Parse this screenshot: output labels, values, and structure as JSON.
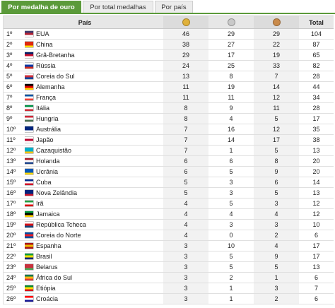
{
  "tabs": [
    {
      "label": "Por medalha de ouro",
      "active": true
    },
    {
      "label": "Por total medalhas",
      "active": false
    },
    {
      "label": "Por país",
      "active": false
    }
  ],
  "header": {
    "country": "País",
    "total": "Total",
    "gold_icon": "gold-medal-icon",
    "silver_icon": "silver-medal-icon",
    "bronze_icon": "bronze-medal-icon",
    "gold_color": "#e0b13a",
    "silver_color": "#c9c9c9",
    "bronze_color": "#c98a4a"
  },
  "rows": [
    {
      "rank": "1º",
      "name": "EUA",
      "flag": [
        "#3c3b6e",
        "#b22234",
        "#ffffff"
      ],
      "gold": "46",
      "silver": "29",
      "bronze": "29",
      "total": "104"
    },
    {
      "rank": "2º",
      "name": "China",
      "flag": [
        "#de2910",
        "#de2910",
        "#ffde00"
      ],
      "gold": "38",
      "silver": "27",
      "bronze": "22",
      "total": "87"
    },
    {
      "rank": "3º",
      "name": "Grã-Bretanha",
      "flag": [
        "#012169",
        "#c8102e",
        "#ffffff"
      ],
      "gold": "29",
      "silver": "17",
      "bronze": "19",
      "total": "65"
    },
    {
      "rank": "4º",
      "name": "Rússia",
      "flag": [
        "#ffffff",
        "#0039a6",
        "#d52b1e"
      ],
      "gold": "24",
      "silver": "25",
      "bronze": "33",
      "total": "82"
    },
    {
      "rank": "5º",
      "name": "Coreia do Sul",
      "flag": [
        "#ffffff",
        "#cd2e3a",
        "#0047a0"
      ],
      "gold": "13",
      "silver": "8",
      "bronze": "7",
      "total": "28"
    },
    {
      "rank": "6º",
      "name": "Alemanha",
      "flag": [
        "#000000",
        "#dd0000",
        "#ffce00"
      ],
      "gold": "11",
      "silver": "19",
      "bronze": "14",
      "total": "44"
    },
    {
      "rank": "7º",
      "name": "França",
      "flag": [
        "#0055a4",
        "#ffffff",
        "#ef4135"
      ],
      "gold": "11",
      "silver": "11",
      "bronze": "12",
      "total": "34"
    },
    {
      "rank": "8º",
      "name": "Itália",
      "flag": [
        "#009246",
        "#ffffff",
        "#ce2b37"
      ],
      "gold": "8",
      "silver": "9",
      "bronze": "11",
      "total": "28"
    },
    {
      "rank": "9º",
      "name": "Hungria",
      "flag": [
        "#ce2939",
        "#ffffff",
        "#477050"
      ],
      "gold": "8",
      "silver": "4",
      "bronze": "5",
      "total": "17"
    },
    {
      "rank": "10º",
      "name": "Austrália",
      "flag": [
        "#00247d",
        "#00247d",
        "#ffffff"
      ],
      "gold": "7",
      "silver": "16",
      "bronze": "12",
      "total": "35"
    },
    {
      "rank": "11º",
      "name": "Japão",
      "flag": [
        "#ffffff",
        "#bc002d",
        "#ffffff"
      ],
      "gold": "7",
      "silver": "14",
      "bronze": "17",
      "total": "38"
    },
    {
      "rank": "12º",
      "name": "Cazaquistão",
      "flag": [
        "#00afca",
        "#00afca",
        "#fec50c"
      ],
      "gold": "7",
      "silver": "1",
      "bronze": "5",
      "total": "13"
    },
    {
      "rank": "13º",
      "name": "Holanda",
      "flag": [
        "#ae1c28",
        "#ffffff",
        "#21468b"
      ],
      "gold": "6",
      "silver": "6",
      "bronze": "8",
      "total": "20"
    },
    {
      "rank": "14º",
      "name": "Ucrânia",
      "flag": [
        "#0057b7",
        "#0057b7",
        "#ffd700"
      ],
      "gold": "6",
      "silver": "5",
      "bronze": "9",
      "total": "20"
    },
    {
      "rank": "15º",
      "name": "Cuba",
      "flag": [
        "#002a8f",
        "#ffffff",
        "#cf142b"
      ],
      "gold": "5",
      "silver": "3",
      "bronze": "6",
      "total": "14"
    },
    {
      "rank": "16º",
      "name": "Nova Zelândia",
      "flag": [
        "#00247d",
        "#00247d",
        "#cc142b"
      ],
      "gold": "5",
      "silver": "3",
      "bronze": "5",
      "total": "13"
    },
    {
      "rank": "17º",
      "name": "Irã",
      "flag": [
        "#239f40",
        "#ffffff",
        "#da0000"
      ],
      "gold": "4",
      "silver": "5",
      "bronze": "3",
      "total": "12"
    },
    {
      "rank": "18º",
      "name": "Jamaica",
      "flag": [
        "#009b3a",
        "#000000",
        "#fed100"
      ],
      "gold": "4",
      "silver": "4",
      "bronze": "4",
      "total": "12"
    },
    {
      "rank": "19º",
      "name": "República Tcheca",
      "flag": [
        "#ffffff",
        "#d7141a",
        "#11457e"
      ],
      "gold": "4",
      "silver": "3",
      "bronze": "3",
      "total": "10"
    },
    {
      "rank": "20º",
      "name": "Coreia do Norte",
      "flag": [
        "#024fa2",
        "#ed1c27",
        "#024fa2"
      ],
      "gold": "4",
      "silver": "0",
      "bronze": "2",
      "total": "6"
    },
    {
      "rank": "21º",
      "name": "Espanha",
      "flag": [
        "#aa151b",
        "#f1bf00",
        "#aa151b"
      ],
      "gold": "3",
      "silver": "10",
      "bronze": "4",
      "total": "17"
    },
    {
      "rank": "22º",
      "name": "Brasil",
      "flag": [
        "#009c3b",
        "#ffdf00",
        "#002776"
      ],
      "gold": "3",
      "silver": "5",
      "bronze": "9",
      "total": "17"
    },
    {
      "rank": "23º",
      "name": "Belarus",
      "flag": [
        "#c8313e",
        "#c8313e",
        "#4aa657"
      ],
      "gold": "3",
      "silver": "5",
      "bronze": "5",
      "total": "13"
    },
    {
      "rank": "24º",
      "name": "África do Sul",
      "flag": [
        "#007a4d",
        "#ffb612",
        "#de3831"
      ],
      "gold": "3",
      "silver": "2",
      "bronze": "1",
      "total": "6"
    },
    {
      "rank": "25º",
      "name": "Etiópia",
      "flag": [
        "#078930",
        "#fcdd09",
        "#da121a"
      ],
      "gold": "3",
      "silver": "1",
      "bronze": "3",
      "total": "7"
    },
    {
      "rank": "26º",
      "name": "Croácia",
      "flag": [
        "#ff0000",
        "#ffffff",
        "#171796"
      ],
      "gold": "3",
      "silver": "1",
      "bronze": "2",
      "total": "6"
    }
  ]
}
